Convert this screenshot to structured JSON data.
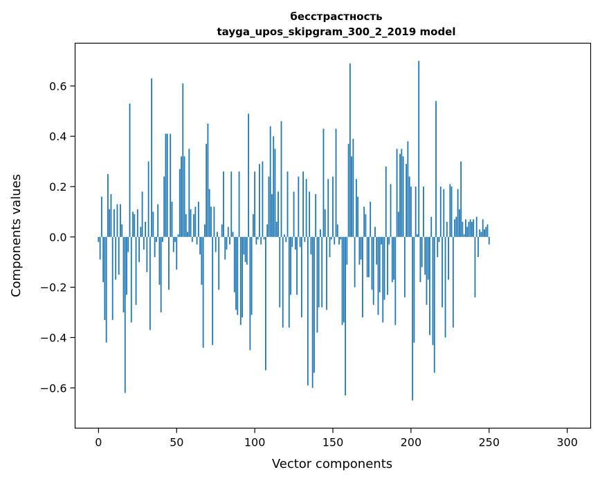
{
  "chart_data": {
    "type": "bar",
    "title": "бесстрастность",
    "subtitle": "tayga_upos_skipgram_300_2_2019 model",
    "xlabel": "Vector components",
    "ylabel": "Components values",
    "xlim": [
      -15,
      315
    ],
    "ylim": [
      -0.76,
      0.77
    ],
    "xticks": [
      0,
      50,
      100,
      150,
      200,
      250,
      300
    ],
    "yticks": [
      -0.6,
      -0.4,
      -0.2,
      0.0,
      0.2,
      0.4,
      0.6
    ],
    "ytick_labels": [
      "−0.6",
      "−0.4",
      "−0.2",
      "0.0",
      "0.2",
      "0.4",
      "0.6"
    ],
    "bar_color": "#1f77b4",
    "grid": false,
    "values": [
      -0.02,
      -0.09,
      0.16,
      -0.18,
      -0.33,
      -0.42,
      0.25,
      0.11,
      0.17,
      -0.33,
      0.11,
      -0.17,
      0.13,
      -0.15,
      0.13,
      0.05,
      -0.3,
      -0.62,
      -0.23,
      -0.06,
      0.53,
      -0.34,
      0.1,
      0.09,
      -0.27,
      0.11,
      -0.1,
      0.04,
      0.18,
      -0.05,
      0.06,
      -0.14,
      0.3,
      -0.37,
      0.63,
      0.1,
      -0.08,
      -0.02,
      0.13,
      -0.19,
      -0.3,
      -0.02,
      0.24,
      0.41,
      0.41,
      -0.21,
      0.41,
      0.14,
      -0.06,
      -0.02,
      -0.13,
      0.01,
      0.27,
      0.32,
      0.61,
      0.32,
      0.09,
      0.02,
      0.35,
      0.11,
      -0.02,
      0.09,
      0.12,
      -0.03,
      0.14,
      -0.07,
      -0.19,
      -0.44,
      0.05,
      0.37,
      0.45,
      0.19,
      0.12,
      -0.43,
      0.12,
      -0.06,
      0.02,
      -0.21,
      0.0,
      0.05,
      0.26,
      -0.09,
      -0.05,
      0.04,
      -0.03,
      0.26,
      0.02,
      -0.22,
      -0.29,
      -0.31,
      0.26,
      -0.35,
      -0.32,
      -0.07,
      -0.1,
      -0.11,
      0.49,
      -0.45,
      -0.31,
      0.09,
      0.26,
      -0.03,
      -0.01,
      0.29,
      -0.03,
      0.3,
      -0.01,
      -0.53,
      0.05,
      0.24,
      0.44,
      0.17,
      0.4,
      0.35,
      0.06,
      0.18,
      -0.28,
      0.46,
      -0.36,
      0.01,
      -0.02,
      0.26,
      -0.36,
      -0.23,
      -0.04,
      0.18,
      -0.05,
      -0.23,
      0.24,
      -0.04,
      -0.32,
      0.26,
      -0.02,
      0.23,
      -0.59,
      0.18,
      -0.07,
      -0.6,
      -0.54,
      0.17,
      -0.38,
      -0.28,
      0.03,
      -0.28,
      0.43,
      0.11,
      -0.29,
      0.23,
      -0.08,
      -0.01,
      0.24,
      -0.03,
      0.43,
      0.05,
      -0.03,
      -0.01,
      -0.35,
      -0.34,
      -0.63,
      -0.11,
      0.37,
      0.69,
      0.32,
      0.39,
      -0.2,
      0.23,
      0.16,
      -0.11,
      -0.09,
      -0.32,
      0.12,
      0.09,
      -0.16,
      -0.16,
      0.14,
      -0.21,
      -0.27,
      0.04,
      -0.11,
      -0.31,
      -0.22,
      -0.03,
      -0.34,
      -0.25,
      0.28,
      -0.23,
      -0.03,
      0.21,
      -0.18,
      -0.17,
      -0.35,
      0.35,
      0.1,
      0.33,
      0.35,
      0.32,
      -0.24,
      0.29,
      0.38,
      0.24,
      0.2,
      -0.65,
      -0.42,
      0.2,
      0.01,
      0.7,
      -0.18,
      -0.12,
      0.2,
      -0.15,
      -0.27,
      -0.17,
      -0.39,
      0.08,
      -0.43,
      -0.54,
      0.54,
      -0.08,
      -0.02,
      0.2,
      -0.28,
      0.19,
      -0.4,
      0.06,
      -0.17,
      0.21,
      0.2,
      -0.36,
      0.07,
      0.08,
      0.19,
      0.11,
      0.3,
      0.06,
      0.01,
      0.07,
      0.04,
      0.06,
      0.07,
      0.06,
      0.07,
      -0.24,
      0.08,
      -0.08,
      0.03,
      0.02,
      0.07,
      0.03,
      0.04,
      0.05,
      -0.03
    ]
  }
}
